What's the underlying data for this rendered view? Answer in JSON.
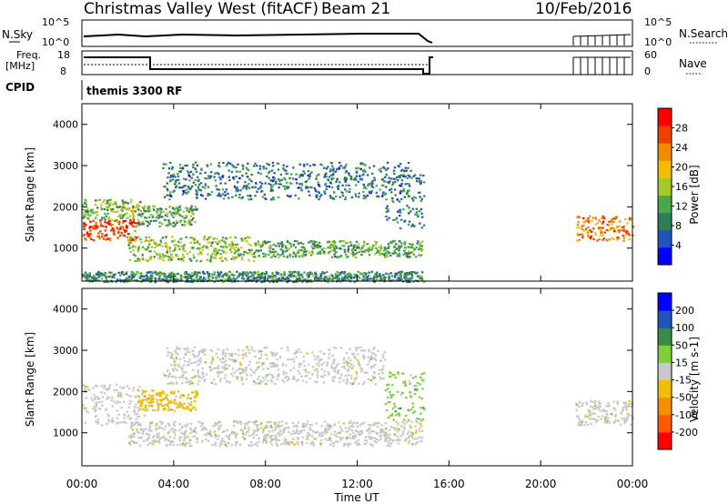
{
  "header": {
    "station": "Christmas Valley West (fitACF)",
    "beam": "Beam 21",
    "date": "10/Feb/2016"
  },
  "strips": {
    "nsky_label": "N.Sky",
    "nsearch_label": "N.Search",
    "nsky_ticks": [
      "10^5",
      "10^0"
    ],
    "nsearch_ticks": [
      "10^5",
      "10^0"
    ],
    "freq_label_1": "Freq.",
    "freq_label_2": "[MHz]",
    "freq_ticks": [
      "18",
      "8"
    ],
    "nave_label": "Nave",
    "nave_ticks": [
      "60",
      "0"
    ],
    "cpid_label": "CPID",
    "cpid_value": "themis 3300 RF"
  },
  "colors": {
    "power_scale": [
      "#0000ff",
      "#2255bb",
      "#2e7d5a",
      "#4aa84a",
      "#a8c82a",
      "#f0c000",
      "#f08c00",
      "#f04000",
      "#ff0000"
    ],
    "velocity_scale": [
      "#ff0000",
      "#ff5a00",
      "#f09000",
      "#f0c000",
      "#c8c8c8",
      "#7ed03a",
      "#3a8a4a",
      "#2255bb",
      "#0000ff"
    ]
  },
  "chart_data": [
    {
      "type": "heatmap",
      "panel": "power",
      "ylabel": "Slant Range [km]",
      "yticks": [
        "1000",
        "2000",
        "3000",
        "4000"
      ],
      "ylim": [
        200,
        4500
      ],
      "xlim": [
        0,
        24
      ],
      "colorbar": {
        "label": "Power [dB]",
        "ticks": [
          "4",
          "8",
          "12",
          "16",
          "20",
          "24",
          "28"
        ],
        "range": [
          0,
          32
        ]
      },
      "regions": [
        {
          "t0": 0.0,
          "t1": 2.4,
          "r0": 1200,
          "r1": 1700,
          "value": 27
        },
        {
          "t0": 0.0,
          "t1": 2.6,
          "r0": 1700,
          "r1": 2200,
          "value": 14
        },
        {
          "t0": 2.4,
          "t1": 5.0,
          "r0": 1550,
          "r1": 2050,
          "value": 12
        },
        {
          "t0": 2.0,
          "t1": 7.5,
          "r0": 700,
          "r1": 1300,
          "value": 15
        },
        {
          "t0": 7.5,
          "t1": 14.8,
          "r0": 800,
          "r1": 1200,
          "value": 12
        },
        {
          "t0": 3.5,
          "t1": 14.3,
          "r0": 2200,
          "r1": 3100,
          "value": 8
        },
        {
          "t0": 13.2,
          "t1": 14.9,
          "r0": 1500,
          "r1": 2800,
          "value": 9
        },
        {
          "t0": 21.5,
          "t1": 24.0,
          "r0": 1200,
          "r1": 1800,
          "value": 24
        },
        {
          "t0": 0.0,
          "t1": 14.9,
          "r0": 200,
          "r1": 450,
          "value": 10
        }
      ]
    },
    {
      "type": "heatmap",
      "panel": "velocity",
      "ylabel": "Slant Range [km]",
      "yticks": [
        "1000",
        "2000",
        "3000",
        "4000"
      ],
      "ylim": [
        200,
        4500
      ],
      "xlim": [
        0,
        24
      ],
      "xlabel": "Time UT",
      "xticks": [
        "00:00",
        "04:00",
        "08:00",
        "12:00",
        "16:00",
        "20:00",
        "00:00"
      ],
      "colorbar": {
        "label": "Velocity [m s-1]",
        "ticks": [
          "-200",
          "-100",
          "-50",
          "-15",
          "15",
          "50",
          "100",
          "200"
        ]
      },
      "regions": [
        {
          "t0": 0.0,
          "t1": 2.8,
          "r0": 1200,
          "r1": 2200,
          "value": 0
        },
        {
          "t0": 2.4,
          "t1": 5.0,
          "r0": 1550,
          "r1": 2050,
          "value": -40
        },
        {
          "t0": 2.0,
          "t1": 14.8,
          "r0": 700,
          "r1": 1300,
          "value": 0
        },
        {
          "t0": 3.5,
          "t1": 13.2,
          "r0": 2200,
          "r1": 3100,
          "value": 0
        },
        {
          "t0": 13.2,
          "t1": 14.9,
          "r0": 1300,
          "r1": 2500,
          "value": 30
        },
        {
          "t0": 21.5,
          "t1": 24.0,
          "r0": 1200,
          "r1": 1800,
          "value": 0
        }
      ]
    }
  ]
}
